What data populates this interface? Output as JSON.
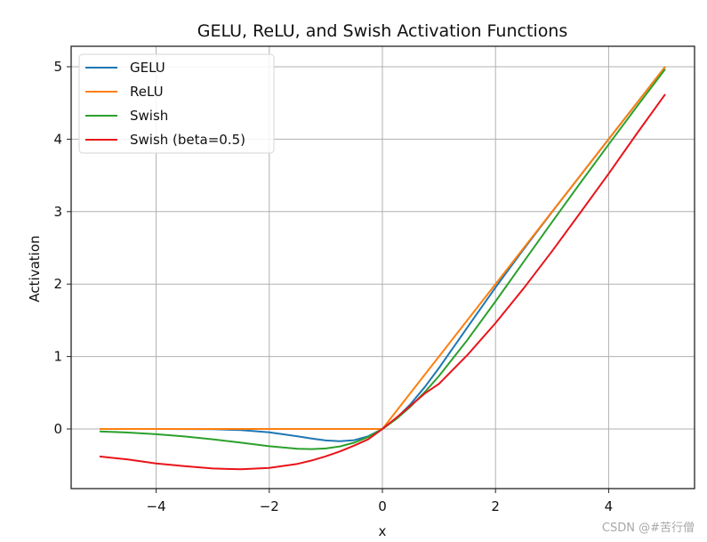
{
  "chart_data": {
    "type": "line",
    "title": "GELU, ReLU, and Swish Activation Functions",
    "xlabel": "x",
    "ylabel": "Activation",
    "xlim": [
      -5.5,
      5.5
    ],
    "ylim": [
      -0.82,
      5.3
    ],
    "xticks": [
      -4,
      -2,
      0,
      2,
      4
    ],
    "xtick_labels": [
      "−4",
      "−2",
      "0",
      "2",
      "4"
    ],
    "yticks": [
      0,
      1,
      2,
      3,
      4,
      5
    ],
    "ytick_labels": [
      "0",
      "1",
      "2",
      "3",
      "4",
      "5"
    ],
    "grid": true,
    "legend_position": "upper left",
    "x": [
      -5,
      -4.5,
      -4,
      -3.5,
      -3,
      -2.5,
      -2,
      -1.5,
      -1.25,
      -1,
      -0.75,
      -0.5,
      -0.25,
      0,
      0.25,
      0.5,
      0.75,
      1,
      1.5,
      2,
      2.5,
      3,
      3.5,
      4,
      4.5,
      5
    ],
    "series": [
      {
        "name": "GELU",
        "color": "#1f77b4",
        "values": [
          0.0,
          0.0,
          -0.0001,
          -0.0008,
          -0.004,
          -0.0155,
          -0.0455,
          -0.1002,
          -0.132,
          -0.1587,
          -0.17,
          -0.1543,
          -0.1003,
          0,
          0.1497,
          0.3457,
          0.58,
          0.8413,
          1.3998,
          1.9545,
          2.4845,
          2.996,
          3.4992,
          3.9999,
          4.5,
          5.0
        ]
      },
      {
        "name": "ReLU",
        "color": "#ff7f0e",
        "values": [
          0,
          0,
          0,
          0,
          0,
          0,
          0,
          0,
          0,
          0,
          0,
          0,
          0,
          0,
          0.25,
          0.5,
          0.75,
          1,
          1.5,
          2,
          2.5,
          3,
          3.5,
          4,
          4.5,
          5
        ]
      },
      {
        "name": "Swish",
        "color": "#2ca02c",
        "values": [
          -0.0335,
          -0.0497,
          -0.0719,
          -0.1026,
          -0.1423,
          -0.1896,
          -0.2384,
          -0.2736,
          -0.2781,
          -0.2689,
          -0.2402,
          -0.1888,
          -0.1097,
          0,
          0.1403,
          0.3112,
          0.5098,
          0.7311,
          1.2264,
          1.7616,
          2.3104,
          2.8577,
          3.3974,
          3.9281,
          4.4503,
          4.9665
        ]
      },
      {
        "name": "Swish (beta=0.5)",
        "color": "#e8141a",
        "values": [
          -0.3793,
          -0.4217,
          -0.4768,
          -0.514,
          -0.5455,
          -0.5566,
          -0.5379,
          -0.4815,
          -0.4353,
          -0.3775,
          -0.3092,
          -0.2302,
          -0.142,
          0,
          0.158,
          0.3225,
          0.4896,
          0.6225,
          1.0185,
          1.4621,
          1.9434,
          2.4545,
          2.986,
          3.5232,
          4.0783,
          4.6207
        ]
      }
    ]
  },
  "legend": {
    "items": [
      {
        "label": "GELU",
        "color": "#1f77b4"
      },
      {
        "label": "ReLU",
        "color": "#ff7f0e"
      },
      {
        "label": "Swish",
        "color": "#2ca02c"
      },
      {
        "label": "Swish (beta=0.5)",
        "color": "#e8141a"
      }
    ]
  },
  "watermark": "CSDN @#苦行僧"
}
